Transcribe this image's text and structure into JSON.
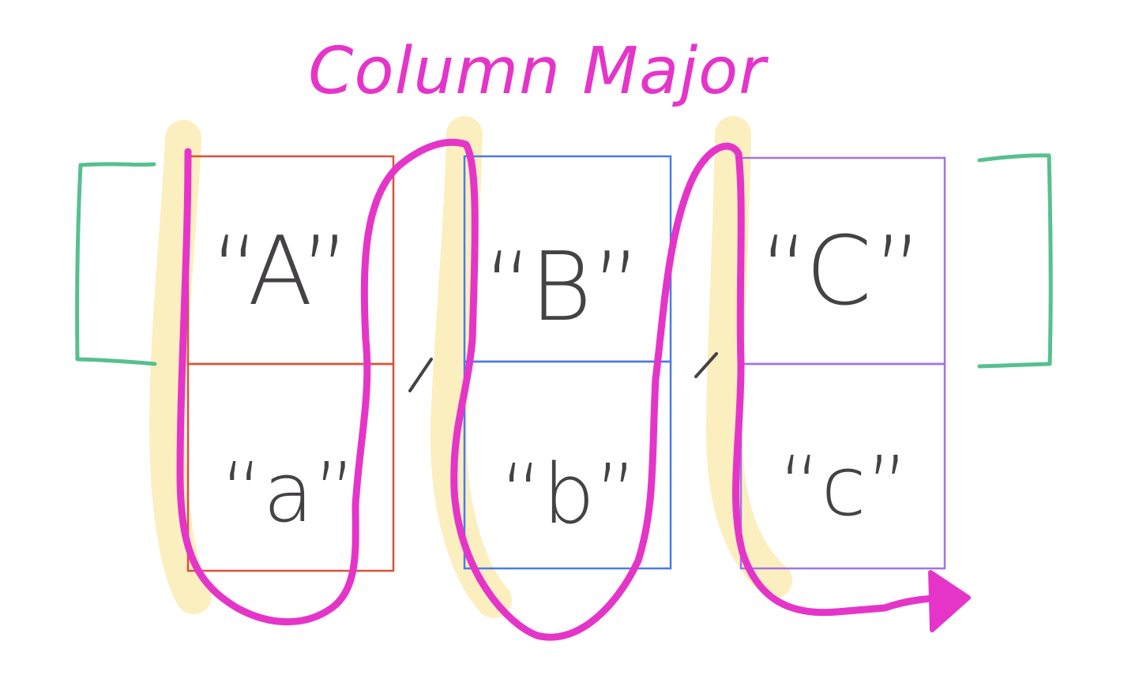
{
  "title": "Column Major",
  "columns": [
    {
      "color": "#d9533b",
      "top_label": "“A”",
      "bottom_label": "“a”"
    },
    {
      "color": "#4a7be8",
      "top_label": "“B”",
      "bottom_label": "“b”"
    },
    {
      "color": "#a173e6",
      "top_label": "“C”",
      "bottom_label": "“c”"
    }
  ],
  "colors": {
    "title": "#e535c9",
    "traversal_path": "#e535c9",
    "highlight": "#fbefc0",
    "brackets": "#56c08e",
    "text": "#454245"
  }
}
